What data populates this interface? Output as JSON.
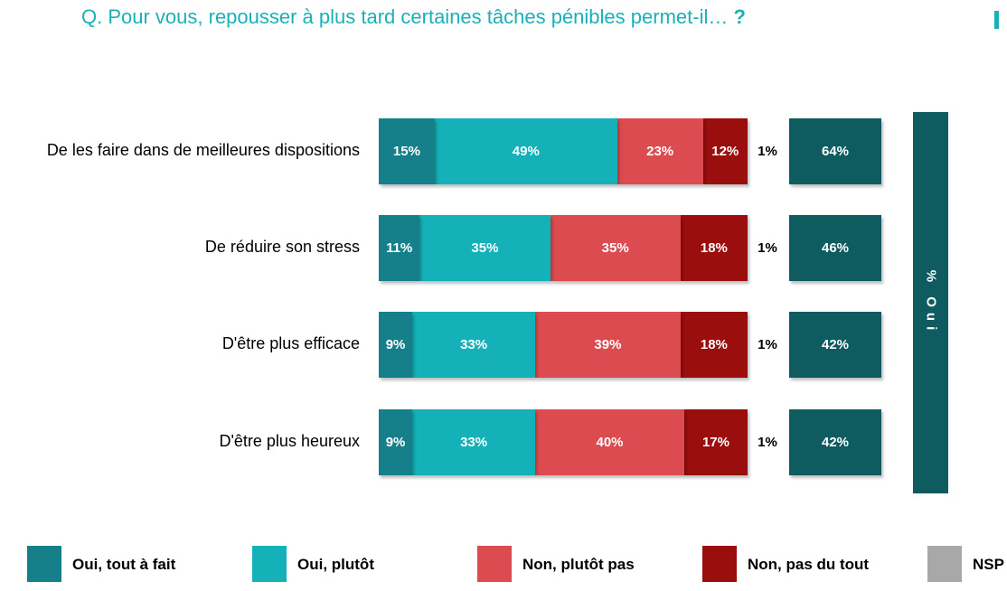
{
  "title": {
    "question": "Q. Pour vous, repousser à plus tard certaines tâches pénibles permet-il…",
    "mark": "?"
  },
  "colors": {
    "title": "#1ab0b8",
    "oui_tout_a_fait": "#158089",
    "oui_plutot": "#15b1b9",
    "non_plutot_pas": "#dc4b50",
    "non_pas_du_tout": "#9b0e0e",
    "nsp": "#a8a8a8",
    "oui_total": "#0e5c60"
  },
  "chart_data": {
    "type": "bar",
    "orientation": "horizontal",
    "stacked": true,
    "normalized": true,
    "categories": [
      "De les faire dans de meilleures dispositions",
      "De réduire son stress",
      "D'être plus efficace",
      "D'être plus heureux"
    ],
    "series": [
      {
        "name": "Oui, tout à fait",
        "key": "oui_tout_a_fait",
        "values": [
          15,
          11,
          9,
          9
        ],
        "labels": [
          "15%",
          "11%",
          "9%",
          "9%"
        ]
      },
      {
        "name": "Oui, plutôt",
        "key": "oui_plutot",
        "values": [
          49,
          35,
          33,
          33
        ],
        "labels": [
          "49%",
          "35%",
          "33%",
          "33%"
        ]
      },
      {
        "name": "Non, plutôt pas",
        "key": "non_plutot_pas",
        "values": [
          23,
          35,
          39,
          40
        ],
        "labels": [
          "23%",
          "35%",
          "39%",
          "40%"
        ]
      },
      {
        "name": "Non, pas du tout",
        "key": "non_pas_du_tout",
        "values": [
          12,
          18,
          18,
          17
        ],
        "labels": [
          "12%",
          "18%",
          "18%",
          "17%"
        ]
      }
    ],
    "nsp": {
      "name": "NSP",
      "values": [
        1,
        1,
        1,
        1
      ],
      "labels": [
        "1%",
        "1%",
        "1%",
        "1%"
      ]
    },
    "oui_total": {
      "label": "% Oui",
      "values": [
        64,
        46,
        42,
        42
      ],
      "labels": [
        "64%",
        "46%",
        "42%",
        "42%"
      ]
    },
    "legend": {
      "placement": "bottom",
      "items": [
        "Oui, tout à fait",
        "Oui, plutôt",
        "Non, plutôt pas",
        "Non, pas du tout",
        "NSP"
      ]
    },
    "grid": false
  }
}
